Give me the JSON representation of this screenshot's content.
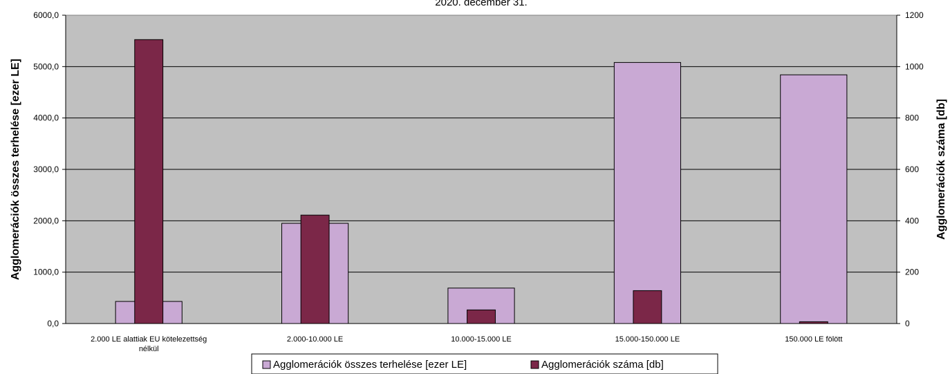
{
  "chart_data": {
    "type": "bar",
    "title": "2020. december 31.",
    "categories": [
      [
        "2.000 LE alattiak EU kötelezettség",
        "nélkül"
      ],
      [
        "2.000-10.000 LE"
      ],
      [
        "10.000-15.000 LE"
      ],
      [
        "15.000-150.000 LE"
      ],
      [
        "150.000 LE fölött"
      ]
    ],
    "series": [
      {
        "name": "Agglomerációk összes terhelése [ezer LE]",
        "axis": "left",
        "color": "#c9a9d4",
        "values": [
          430,
          1950,
          690,
          5080,
          4840
        ]
      },
      {
        "name": "Agglomerációk száma [db]",
        "axis": "right",
        "color": "#7b2748",
        "values": [
          1105,
          422,
          53,
          128,
          7
        ]
      }
    ],
    "ylabel": "Agglomerációk összes terhelése [ezer LE]",
    "y2label": "Agglomerációk száma [db]",
    "ylim": [
      0,
      6000
    ],
    "y2lim": [
      0,
      1200
    ],
    "yticks": [
      "0,0",
      "1000,0",
      "2000,0",
      "3000,0",
      "4000,0",
      "5000,0",
      "6000,0"
    ],
    "y2ticks": [
      "0",
      "200",
      "400",
      "600",
      "800",
      "1000",
      "1200"
    ],
    "plot_background": "#c0c0c0",
    "grid": true,
    "legend_position": "bottom"
  }
}
